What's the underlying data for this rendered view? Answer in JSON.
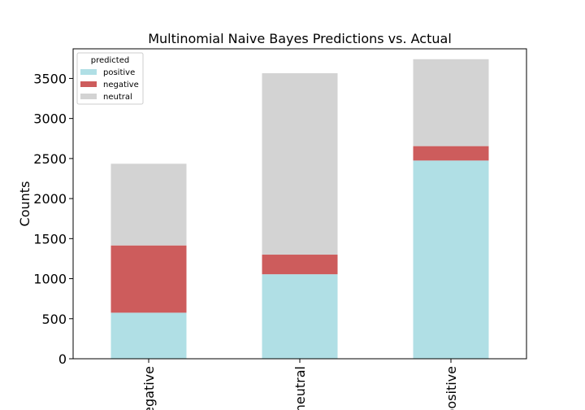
{
  "chart_data": {
    "type": "bar",
    "stacked": true,
    "title": "Multinomial Naive Bayes Predictions vs. Actual",
    "xlabel": "",
    "ylabel": "Counts",
    "categories": [
      "negative",
      "neutral",
      "positive"
    ],
    "series": [
      {
        "name": "positive",
        "values": [
          575,
          1055,
          2475
        ],
        "color": "#b0dfe5"
      },
      {
        "name": "negative",
        "values": [
          840,
          245,
          180
        ],
        "color": "#cd5c5c"
      },
      {
        "name": "neutral",
        "values": [
          1020,
          2265,
          1085
        ],
        "color": "#d3d3d3"
      }
    ],
    "ylim": [
      0,
      3870
    ],
    "yticks": [
      0,
      500,
      1000,
      1500,
      2000,
      2500,
      3000,
      3500
    ],
    "grid": false,
    "legend": {
      "title": "predicted",
      "placement": "top-left"
    }
  }
}
